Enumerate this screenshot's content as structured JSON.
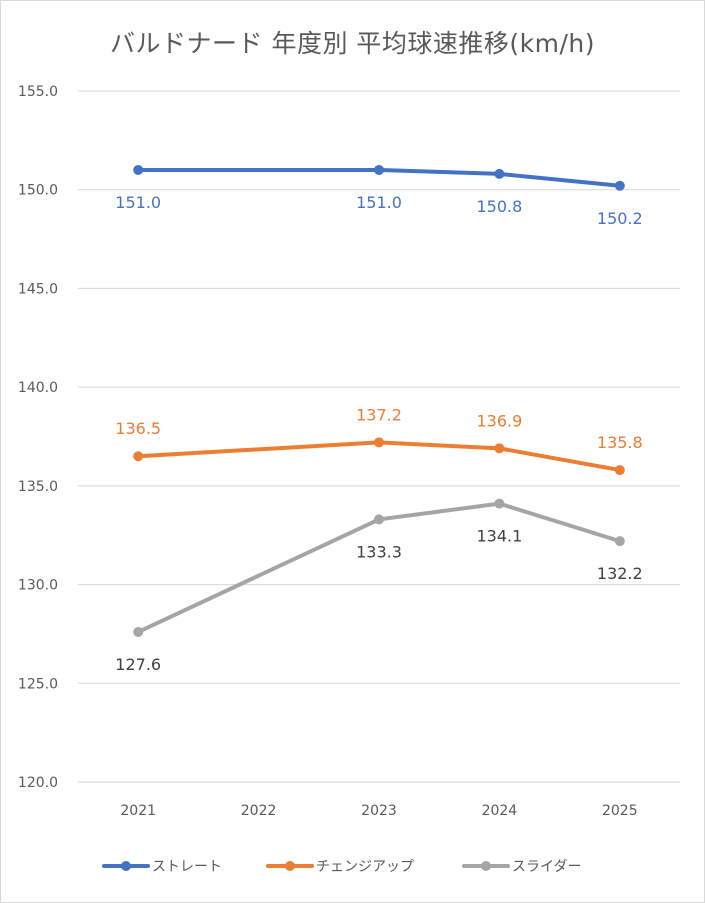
{
  "chart_data": {
    "type": "line",
    "title": "バルドナード 年度別 平均球速推移(km/h)",
    "categories": [
      "2021",
      "2022",
      "2023",
      "2024",
      "2025"
    ],
    "ylim": [
      120,
      155
    ],
    "ytick_step": 5,
    "grid": true,
    "legend_position": "bottom",
    "series": [
      {
        "name": "ストレート",
        "color": "#4472c4",
        "values": [
          151.0,
          null,
          151.0,
          150.8,
          150.2
        ],
        "labels": [
          "151.0",
          null,
          "151.0",
          "150.8",
          "150.2"
        ],
        "label_pos": "below"
      },
      {
        "name": "チェンジアップ",
        "color": "#ed7d31",
        "values": [
          136.5,
          null,
          137.2,
          136.9,
          135.8
        ],
        "labels": [
          "136.5",
          null,
          "137.2",
          "136.9",
          "135.8"
        ],
        "label_pos": "above"
      },
      {
        "name": "スライダー",
        "color": "#a5a5a5",
        "values": [
          127.6,
          null,
          133.3,
          134.1,
          132.2
        ],
        "labels": [
          "127.6",
          null,
          "133.3",
          "134.1",
          "132.2"
        ],
        "label_pos": "below",
        "label_color": "#404040"
      }
    ]
  }
}
